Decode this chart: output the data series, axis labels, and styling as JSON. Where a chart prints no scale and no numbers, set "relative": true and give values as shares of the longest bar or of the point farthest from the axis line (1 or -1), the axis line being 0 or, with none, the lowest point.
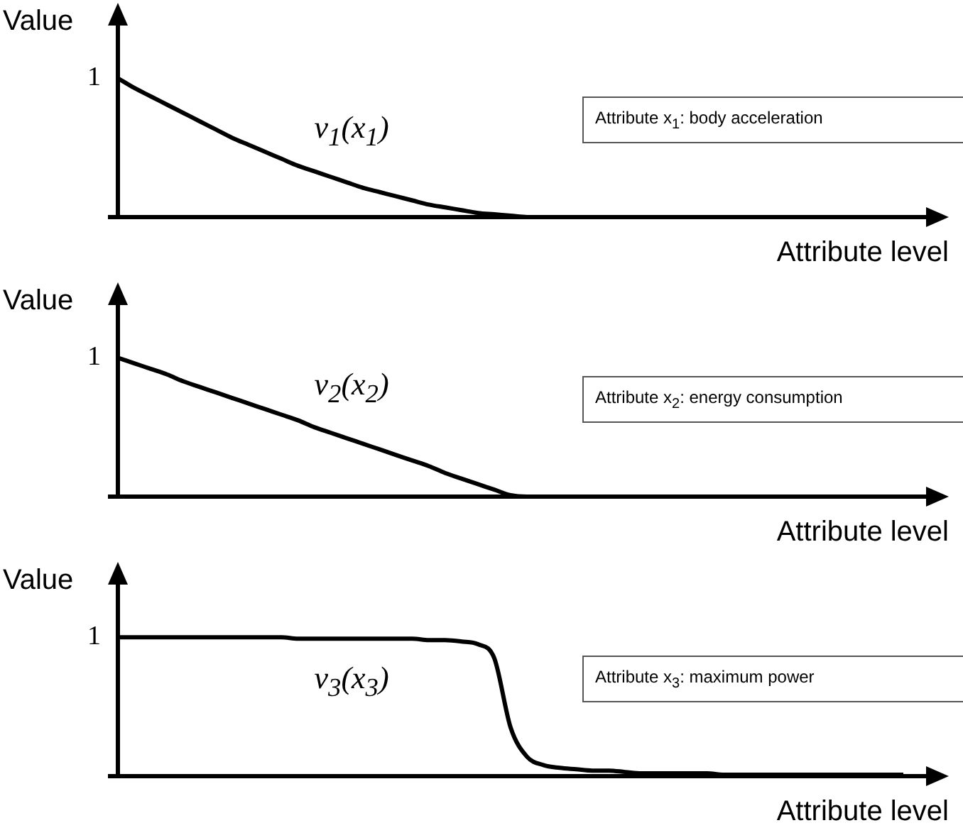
{
  "chart_data": [
    {
      "type": "line",
      "categories": [
        null,
        null,
        null,
        null,
        null,
        null,
        null,
        null,
        null,
        null,
        null,
        null,
        null,
        null,
        null,
        null,
        null,
        null,
        null,
        null,
        null,
        null,
        null,
        null,
        null,
        null,
        null,
        null,
        null,
        null,
        null,
        null,
        null,
        null,
        null,
        null,
        null,
        null,
        null,
        null,
        null,
        null,
        null,
        null,
        null,
        null,
        null,
        null,
        null
      ],
      "ylabel": "Value",
      "xlabel": "Attribute level",
      "relative": true,
      "marker": "none",
      "annotations": [
        "1",
        "Attribute x$_{1}$: body acceleration"
      ],
      "series": [
        {
          "name": "v$_{1}$(x$_{1}$)",
          "color": "#000000",
          "values": [
            1,
            0.93,
            0.87,
            0.81,
            0.75,
            0.69,
            0.63,
            0.57,
            0.52,
            0.47,
            0.42,
            0.37,
            0.33,
            0.29,
            0.25,
            0.21,
            0.18,
            0.15,
            0.12,
            0.09,
            0.07,
            0.05,
            0.03,
            0.02,
            0.01,
            0,
            0,
            0,
            0,
            0,
            0,
            0,
            0,
            0,
            0,
            0,
            0,
            0,
            0,
            0,
            0,
            0,
            0,
            0,
            0,
            0,
            0,
            0,
            0
          ]
        }
      ]
    },
    {
      "type": "line",
      "categories": [
        null,
        null,
        null,
        null,
        null,
        null,
        null,
        null,
        null,
        null,
        null,
        null,
        null,
        null,
        null,
        null,
        null,
        null,
        null,
        null,
        null,
        null,
        null,
        null,
        null,
        null,
        null,
        null,
        null,
        null,
        null,
        null,
        null,
        null,
        null,
        null,
        null,
        null,
        null,
        null,
        null,
        null,
        null,
        null,
        null,
        null,
        null,
        null,
        null
      ],
      "ylabel": "Value",
      "xlabel": "Attribute level",
      "relative": true,
      "marker": "none",
      "annotations": [
        "1",
        "Attribute x$_{2}$: energy consumption"
      ],
      "series": [
        {
          "name": "v$_{2}$(x$_{2}$)",
          "color": "#000000",
          "values": [
            1,
            0.96,
            0.92,
            0.88,
            0.83,
            0.79,
            0.75,
            0.71,
            0.67,
            0.63,
            0.59,
            0.55,
            0.5,
            0.46,
            0.42,
            0.38,
            0.34,
            0.3,
            0.26,
            0.22,
            0.17,
            0.13,
            0.09,
            0.05,
            0.01,
            0,
            0,
            0,
            0,
            0,
            0,
            0,
            0,
            0,
            0,
            0,
            0,
            0,
            0,
            0,
            0,
            0,
            0,
            0,
            0,
            0,
            0,
            0,
            0
          ]
        }
      ]
    },
    {
      "type": "line",
      "categories": [
        null,
        null,
        null,
        null,
        null,
        null,
        null,
        null,
        null,
        null,
        null,
        null,
        null,
        null,
        null,
        null,
        null,
        null,
        null,
        null,
        null,
        null,
        null,
        null,
        null,
        null,
        null,
        null,
        null,
        null,
        null,
        null,
        null,
        null,
        null,
        null,
        null,
        null,
        null,
        null,
        null,
        null,
        null,
        null,
        null,
        null,
        null,
        null,
        null
      ],
      "ylabel": "Value",
      "xlabel": "Attribute level",
      "relative": true,
      "marker": "none",
      "annotations": [
        "1",
        "Attribute x$_{3}$: maximum power"
      ],
      "series": [
        {
          "name": "v$_{3}$(x$_{3}$)",
          "color": "#000000",
          "values": [
            1,
            1,
            1,
            1,
            1,
            1,
            1,
            1,
            1,
            1,
            1,
            0.99,
            0.99,
            0.99,
            0.99,
            0.99,
            0.99,
            0.99,
            0.99,
            0.98,
            0.98,
            0.97,
            0.95,
            0.85,
            0.35,
            0.14,
            0.08,
            0.06,
            0.05,
            0.04,
            0.04,
            0.03,
            0.02,
            0.02,
            0.02,
            0.02,
            0.02,
            0.01,
            0.01,
            0.01,
            0.01,
            0.01,
            0.01,
            0.01,
            0.01,
            0.01,
            0.01,
            0.01,
            0.01
          ]
        }
      ]
    }
  ]
}
